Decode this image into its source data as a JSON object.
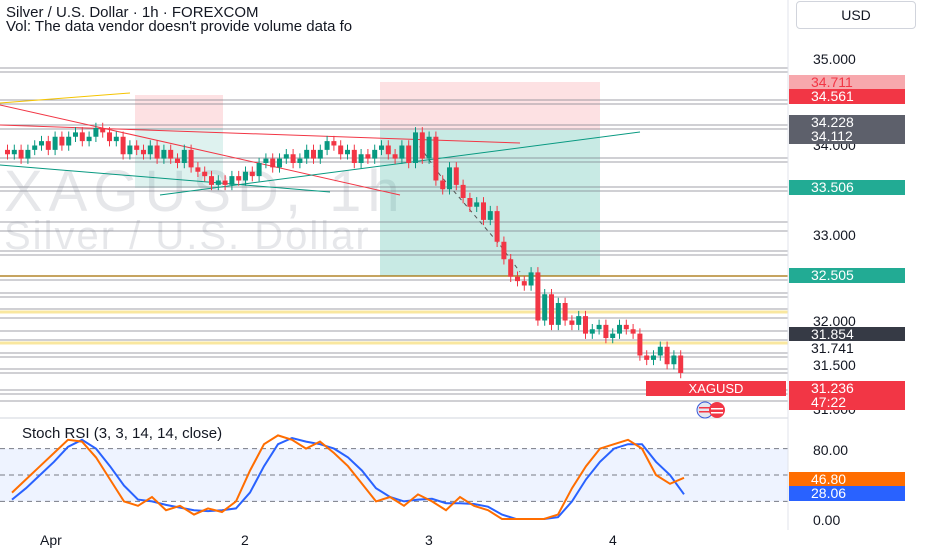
{
  "header": {
    "title": "Silver / U.S. Dollar · 1h · FOREXCOM",
    "volume_note": "Vol: The data vendor doesn't provide volume data fo",
    "currency": "USD"
  },
  "watermark": {
    "ticker": "XAGUSD, 1h",
    "name": "Silver / U.S. Dollar"
  },
  "price_axis": {
    "ticks": [
      "35.000",
      "34.000",
      "33.000",
      "32.000",
      "31.500",
      "31.000"
    ]
  },
  "price_labels": [
    {
      "text": "34.711",
      "color": "#f7a8ad",
      "text_color": "#f23645"
    },
    {
      "text": "34.561",
      "color": "#f23645",
      "text_color": "#ffffff"
    },
    {
      "text": "34.228",
      "color": "#5d606b",
      "text_color": "#ffffff"
    },
    {
      "text": "34.112",
      "color": "#5d606b",
      "text_color": "#ffffff"
    },
    {
      "text": "33.506",
      "color": "#22ab94",
      "text_color": "#ffffff"
    },
    {
      "text": "32.505",
      "color": "#22ab94",
      "text_color": "#ffffff"
    },
    {
      "text": "31.854",
      "color": "#363a45",
      "text_color": "#ffffff"
    },
    {
      "text": "31.741",
      "color": "#ffffff",
      "text_color": "#131722"
    },
    {
      "text": "31.236",
      "color": "#f23645",
      "text_color": "#ffffff"
    },
    {
      "text": "47:22",
      "color": "#f23645",
      "text_color": "#ffffff"
    }
  ],
  "symbol_tag": "XAGUSD",
  "stoch": {
    "label": "Stoch RSI (3, 3, 14, 14, close)",
    "ticks": [
      "80.00",
      "0.00"
    ],
    "k_value": "46.80",
    "d_value": "28.06",
    "k_color": "#ff6d00",
    "d_color": "#2962ff"
  },
  "time_axis": {
    "ticks": [
      "Apr",
      "2",
      "3",
      "4"
    ]
  },
  "colors": {
    "up": "#089981",
    "down": "#f23645",
    "profit_zone": "#22ab94",
    "loss_zone": "#f23645"
  },
  "chart_data": {
    "type": "candlestick",
    "symbol": "XAGUSD",
    "interval": "1h",
    "y_range": [
      31.0,
      35.0
    ],
    "candles_close": [
      33.9,
      33.95,
      33.85,
      33.95,
      34.0,
      34.05,
      33.95,
      34.1,
      34.0,
      34.1,
      34.15,
      34.05,
      34.1,
      34.2,
      34.15,
      34.05,
      34.1,
      33.9,
      34.0,
      33.95,
      33.9,
      34.0,
      33.85,
      33.95,
      33.85,
      33.8,
      33.95,
      33.75,
      33.7,
      33.65,
      33.55,
      33.6,
      33.55,
      33.65,
      33.6,
      33.7,
      33.65,
      33.8,
      33.85,
      33.75,
      33.85,
      33.9,
      33.8,
      33.85,
      33.95,
      33.85,
      33.95,
      34.05,
      34.0,
      33.9,
      33.95,
      33.8,
      33.9,
      33.85,
      33.95,
      34.0,
      33.9,
      33.85,
      34.0,
      33.8,
      34.15,
      33.85,
      34.1,
      33.6,
      33.5,
      33.75,
      33.55,
      33.4,
      33.3,
      33.35,
      33.15,
      33.25,
      32.9,
      32.7,
      32.5,
      32.45,
      32.4,
      32.55,
      32.0,
      32.3,
      31.95,
      32.2,
      32.0,
      31.95,
      32.05,
      31.85,
      31.9,
      31.95,
      31.8,
      31.85,
      31.95,
      31.9,
      31.85,
      31.6,
      31.55,
      31.6,
      31.7,
      31.5,
      31.6,
      31.4
    ],
    "horizontal_levels": [
      34.711,
      34.561,
      34.228,
      34.112,
      33.506,
      32.505,
      31.854,
      31.741,
      31.236
    ],
    "stoch_rsi": {
      "ylim": [
        0,
        100
      ],
      "k": [
        30,
        45,
        60,
        75,
        90,
        88,
        70,
        45,
        20,
        15,
        25,
        10,
        15,
        5,
        12,
        8,
        20,
        55,
        85,
        95,
        90,
        80,
        88,
        75,
        60,
        40,
        20,
        25,
        15,
        28,
        20,
        10,
        25,
        15,
        10,
        0,
        0,
        0,
        0,
        5,
        35,
        60,
        80,
        85,
        90,
        80,
        50,
        40,
        46.8
      ],
      "d": [
        22,
        35,
        50,
        65,
        82,
        90,
        80,
        60,
        38,
        22,
        20,
        16,
        13,
        10,
        9,
        10,
        12,
        30,
        60,
        85,
        92,
        88,
        85,
        80,
        70,
        55,
        35,
        25,
        20,
        22,
        23,
        18,
        18,
        17,
        14,
        5,
        0,
        0,
        0,
        2,
        20,
        45,
        65,
        80,
        85,
        85,
        65,
        50,
        28.06
      ]
    }
  }
}
